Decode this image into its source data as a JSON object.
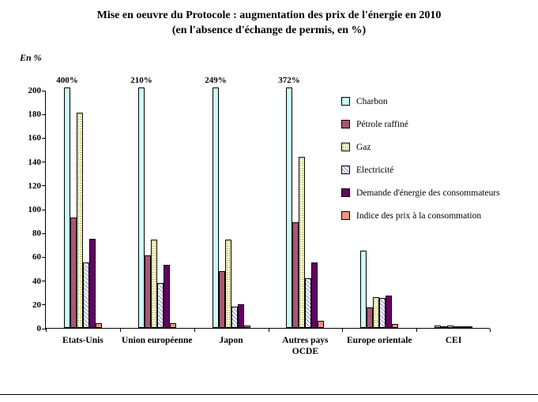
{
  "title_line1": "Mise en oeuvre du Protocole : augmentation des prix de l'énergie en 2010",
  "title_line2": "(en l'absence d'échange de permis, en %)",
  "chart_data": {
    "type": "bar",
    "title": "Mise en oeuvre du Protocole : augmentation des prix de l'énergie en 2010 (en l'absence d'échange de permis, en %)",
    "xlabel": "",
    "ylabel": "En %",
    "ylim": [
      0,
      200
    ],
    "yticks": [
      0,
      20,
      40,
      60,
      80,
      100,
      120,
      140,
      160,
      180,
      200
    ],
    "grid": false,
    "legend_position": "right",
    "cap_value": 202,
    "categories": [
      "Etats-Unis",
      "Union européenne",
      "Japon",
      "Autres pays OCDE",
      "Europe orientale",
      "CEI"
    ],
    "series": [
      {
        "name": "Charbon",
        "color": "#c8ffff",
        "pattern": "solid",
        "values": [
          400,
          210,
          249,
          372,
          65,
          2
        ],
        "cap_labels": [
          "400%",
          "210%",
          "249%",
          "372%",
          "",
          ""
        ]
      },
      {
        "name": "Pétrole raffiné",
        "color": "#aa5576",
        "pattern": "solid",
        "values": [
          93,
          61,
          48,
          89,
          17,
          1
        ]
      },
      {
        "name": "Gaz",
        "color": "#ffffcc",
        "pattern": "dots",
        "values": [
          181,
          74,
          74,
          144,
          26,
          2
        ]
      },
      {
        "name": "Electricité",
        "color": "#ccccff",
        "pattern": "hatch",
        "values": [
          55,
          38,
          18,
          42,
          25,
          1
        ]
      },
      {
        "name": "Demande d'énergie des consommateurs",
        "color": "#660066",
        "pattern": "solid",
        "values": [
          75,
          53,
          20,
          55,
          27,
          1
        ]
      },
      {
        "name": "Indice des prix à la consommation",
        "color": "#f78f7f",
        "pattern": "solid",
        "values": [
          4,
          4,
          2,
          6,
          3,
          0.5
        ]
      }
    ]
  }
}
